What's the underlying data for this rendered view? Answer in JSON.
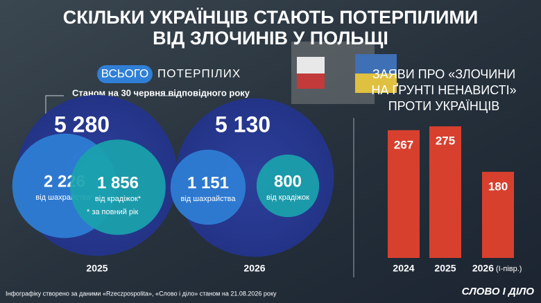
{
  "title_lines": [
    "СКІЛЬКИ УКРАЇНЦІВ СТАЮТЬ ПОТЕРПІЛИМИ",
    "ВІД ЗЛОЧИНІВ У ПОЛЬЩІ"
  ],
  "chart_data": [
    {
      "type": "venn",
      "badge": "ВСЬОГО",
      "title": "ПОТЕРПІЛИХ",
      "subtitle": "Станом на 30 червня відповідного року",
      "note": "* за повний рік",
      "groups": [
        {
          "name": "2025",
          "total": 5280,
          "total_label": "5 280",
          "parts": [
            {
              "label": "від шахрайства*",
              "value": 2226,
              "value_label": "2 226",
              "color": "#2f7fd6"
            },
            {
              "label": "від крадіжок*",
              "value": 1856,
              "value_label": "1 856",
              "color": "#1aa3ad"
            }
          ]
        },
        {
          "name": "2026",
          "total": 5130,
          "total_label": "5 130",
          "parts": [
            {
              "label": "від шахрайства",
              "value": 1151,
              "value_label": "1 151",
              "color": "#2f7fd6"
            },
            {
              "label": "від крадіжок",
              "value": 800,
              "value_label": "800",
              "color": "#1aa3ad"
            }
          ]
        }
      ]
    },
    {
      "type": "bar",
      "title_lines": [
        "ЗАЯВИ ПРО «ЗЛОЧИНИ",
        "НА ҐРУНТІ НЕНАВИСТІ»",
        "ПРОТИ УКРАЇНЦІВ"
      ],
      "categories": [
        "2024",
        "2025",
        "2026"
      ],
      "period_note": "(І-півр.)",
      "values": [
        267,
        275,
        180
      ],
      "color": "#d8402e"
    }
  ],
  "footer": "Інфографіку створено за даними «Rzeczpospolita», «Слово і діло» станом на 21.08.2026 року",
  "logo": "СЛОВО І ДІЛО"
}
